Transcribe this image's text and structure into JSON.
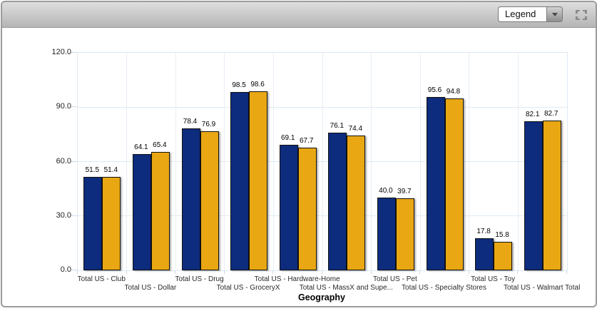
{
  "titlebar": {
    "legend_dropdown": {
      "value": "Legend"
    }
  },
  "chart_data": {
    "type": "bar",
    "title": "",
    "xlabel": "Geography",
    "ylabel": "",
    "ylim": [
      0,
      120
    ],
    "ytick_labels": [
      "0.0",
      "30.0",
      "60.0",
      "90.0",
      "120.0"
    ],
    "grid": true,
    "legend_position": "collapsed-dropdown-top-right",
    "bar_value_labels": true,
    "categories": [
      "Total US - Club",
      "Total US - Dollar",
      "Total US - Drug",
      "Total US - GroceryX",
      "Total US - Hardware-Home",
      "Total US - MassX and Supe...",
      "Total US - Pet",
      "Total US - Specialty Stores",
      "Total US - Toy",
      "Total US - Walmart Total"
    ],
    "series": [
      {
        "name": "blue",
        "color": "#0d2c7d",
        "values": [
          51.5,
          64.1,
          78.4,
          98.5,
          69.1,
          76.1,
          40.0,
          95.6,
          17.8,
          82.1
        ]
      },
      {
        "name": "gold",
        "color": "#e8a713",
        "values": [
          51.4,
          65.4,
          76.9,
          98.6,
          67.7,
          74.4,
          39.7,
          94.8,
          15.8,
          82.7
        ]
      }
    ],
    "grid_color": "#dfeaf4"
  }
}
